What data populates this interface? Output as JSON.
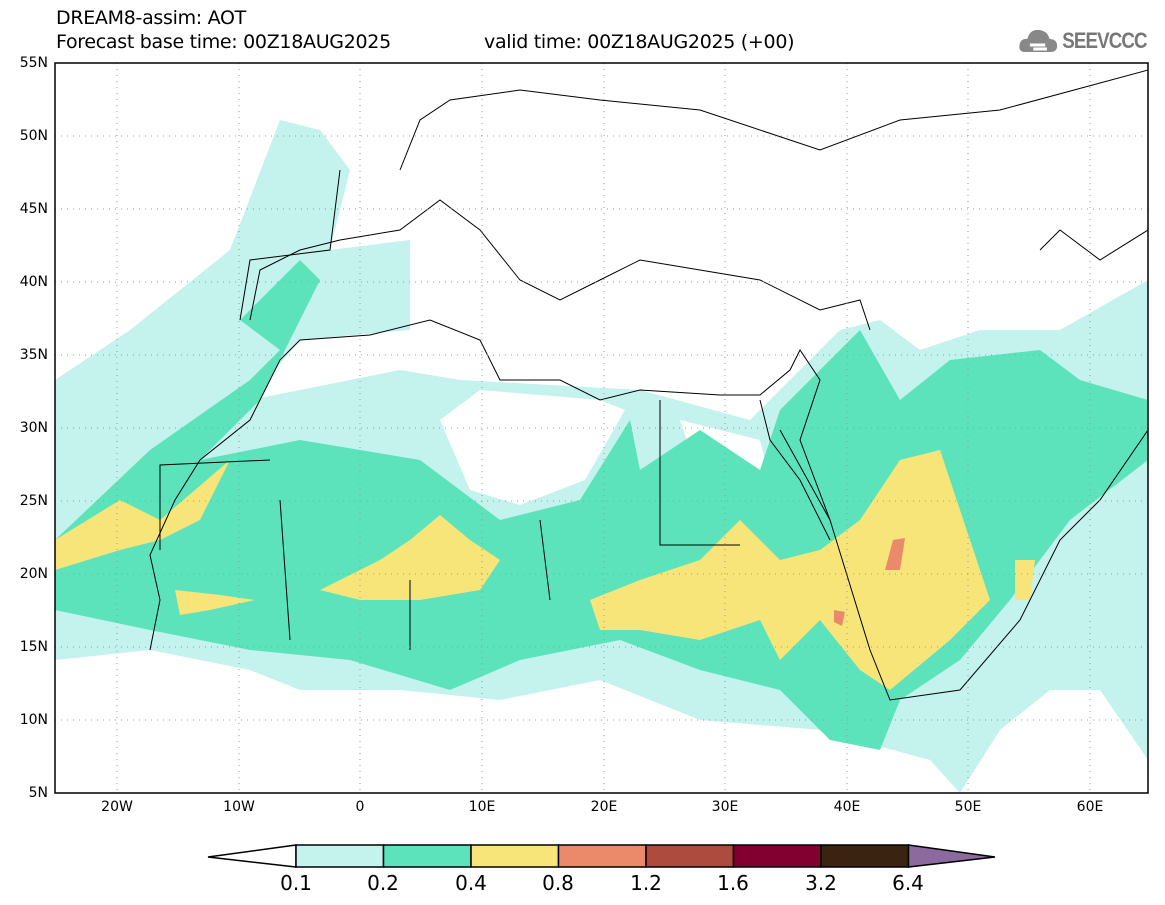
{
  "header": {
    "title": "DREAM8-assim: AOT",
    "base_time": "Forecast base time: 00Z18AUG2025",
    "valid_time": "valid time: 00Z18AUG2025 (+00)"
  },
  "logo": {
    "text": "SEEVCCC",
    "icon": "cloud-icon"
  },
  "map": {
    "lat_labels": [
      "55N",
      "50N",
      "45N",
      "40N",
      "35N",
      "30N",
      "25N",
      "20N",
      "15N",
      "10N",
      "5N"
    ],
    "lon_labels": [
      "20W",
      "10W",
      "0",
      "10E",
      "20E",
      "30E",
      "40E",
      "50E",
      "60E"
    ],
    "extent": {
      "lon": [
        -25,
        65
      ],
      "lat": [
        5,
        55
      ]
    }
  },
  "colorbar": {
    "labels": [
      "0.1",
      "0.2",
      "0.4",
      "0.8",
      "1.2",
      "1.6",
      "3.2",
      "6.4"
    ],
    "colors": [
      "#ffffff",
      "#c4f2ec",
      "#5de3bc",
      "#f7e57a",
      "#ea8a6a",
      "#ac4b3e",
      "#820030",
      "#3a2310",
      "#8c6aa0"
    ]
  }
}
